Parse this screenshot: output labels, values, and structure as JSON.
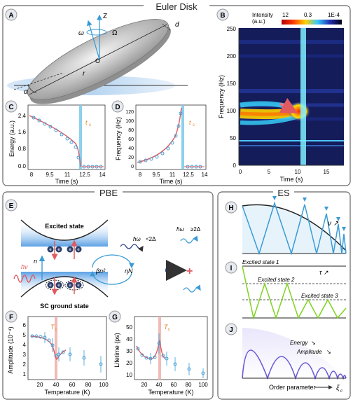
{
  "sections": {
    "euler": "Euler Disk",
    "pbe": "PBE",
    "es": "ES"
  },
  "panel_labels": [
    "A",
    "B",
    "C",
    "D",
    "E",
    "F",
    "G",
    "H",
    "I",
    "J"
  ],
  "panelA": {
    "z": "Z",
    "omega": "ω",
    "Omega": "Ω",
    "o": "O",
    "r": "r",
    "d": "d",
    "alpha": "α"
  },
  "panelB": {
    "intensity_label": "Intensity",
    "units_label": "(a.u.)",
    "cb_max": "12",
    "cb_mid": "0.3",
    "cb_min": "1E-4",
    "ylabel": "Frequency (Hz)",
    "xlabel": "Time (s)",
    "yticks": [
      "250",
      "200",
      "150",
      "100",
      "50",
      "0"
    ],
    "xticks": [
      "0",
      "5",
      "10",
      "15"
    ]
  },
  "panelC": {
    "ylabel": "Energy (a.u.)",
    "xlabel": "Time (s)",
    "yticks": [
      "2.4",
      "1.6",
      "0.8",
      "0.0"
    ],
    "xticks": [
      "8",
      "9.5",
      "11",
      "12.5",
      "14"
    ],
    "tc": "t"
  },
  "panelD": {
    "ylabel": "Frequency (Hz)",
    "xlabel": "Time (s)",
    "yticks": [
      "120",
      "100",
      "80",
      "60",
      "40",
      "20",
      "0"
    ],
    "xticks": [
      "8",
      "9.5",
      "11",
      "12.5",
      "14"
    ],
    "tc": "t"
  },
  "panelE": {
    "excited": "Excited state",
    "ground": "SC ground state",
    "hv": "hν",
    "n": "n",
    "beta": "βn²",
    "eta": "ηN",
    "omega_a": "ħω",
    "omega_a2": "≥2Δ",
    "omega_b": "ħω",
    "omega_b2": "<2Δ"
  },
  "panelF": {
    "ylabel": "Amplitude (10⁻⁴)",
    "xlabel": "Temperature (K)",
    "yticks": [
      "6",
      "5",
      "4",
      "3",
      "2",
      "1"
    ],
    "xticks": [
      "20",
      "40",
      "60",
      "80",
      "100"
    ],
    "tc": "T"
  },
  "panelG": {
    "ylabel": "Lifetime (ps)",
    "xlabel": "Temperature (K)",
    "yticks": [
      "50",
      "40",
      "30",
      "20",
      "10"
    ],
    "xticks": [
      "20",
      "40",
      "60",
      "80",
      "100"
    ],
    "tc": "T"
  },
  "panelH": {
    "nu": "ν"
  },
  "panelI": {
    "s1": "Excited state 1",
    "s2": "Excited state 2",
    "s3": "Excited state 3",
    "tau": "τ"
  },
  "panelJ": {
    "energy": "Energy",
    "amplitude": "Amplitude",
    "xlabel": "Order parameter",
    "xi": "ξ"
  },
  "colors": {
    "blue": "#3a9bd5",
    "red": "#e05a60",
    "green": "#7ed321",
    "purple": "#6a5bd6",
    "frame": "#555555"
  }
}
